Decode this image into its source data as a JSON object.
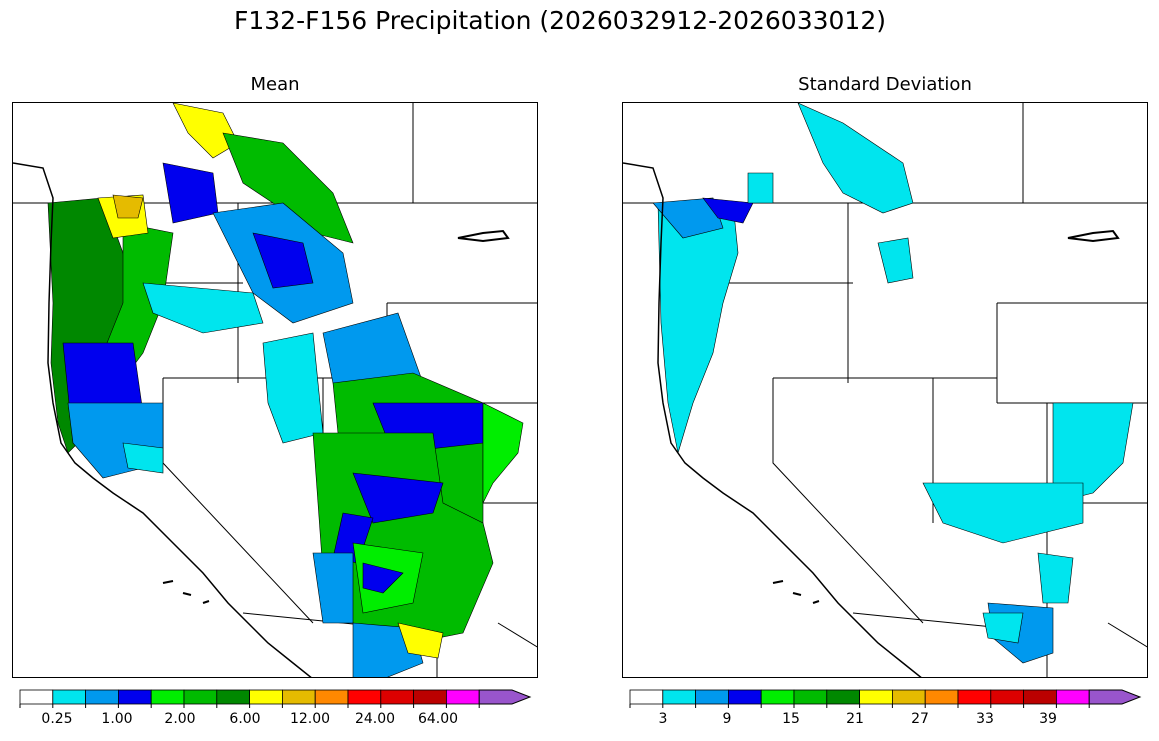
{
  "title": "F132-F156 Precipitation (2026032912-2026033012)",
  "panels": [
    {
      "title": "Mean",
      "colorbar": {
        "colors": [
          "#ffffff",
          "#00e5ee",
          "#0099ee",
          "#0000ee",
          "#00ee00",
          "#00bb00",
          "#008800",
          "#ffff00",
          "#e5bb00",
          "#ff8800",
          "#ff0000",
          "#dd0000",
          "#bb0000",
          "#ff00ff",
          "#9955cc"
        ],
        "tick_labels": [
          "0.25",
          "1.00",
          "2.00",
          "6.00",
          "12.00",
          "24.00",
          "64.00"
        ],
        "extend": "max"
      }
    },
    {
      "title": "Standard Deviation",
      "colorbar": {
        "colors": [
          "#ffffff",
          "#00e5ee",
          "#0099ee",
          "#0000ee",
          "#00ee00",
          "#00bb00",
          "#008800",
          "#ffff00",
          "#e5bb00",
          "#ff8800",
          "#ff0000",
          "#dd0000",
          "#bb0000",
          "#ff00ff",
          "#9955cc"
        ],
        "tick_labels": [
          "3",
          "9",
          "15",
          "21",
          "27",
          "33",
          "39"
        ],
        "extend": "max"
      }
    }
  ],
  "legend_colors": {
    "white": "#ffffff",
    "cyan": "#00e5ee",
    "light_blue": "#0099ee",
    "blue": "#0000ee",
    "light_green": "#00ee00",
    "green": "#00bb00",
    "dark_green": "#008800",
    "yellow": "#ffff00",
    "gold": "#e5bb00",
    "orange": "#ff8800"
  }
}
